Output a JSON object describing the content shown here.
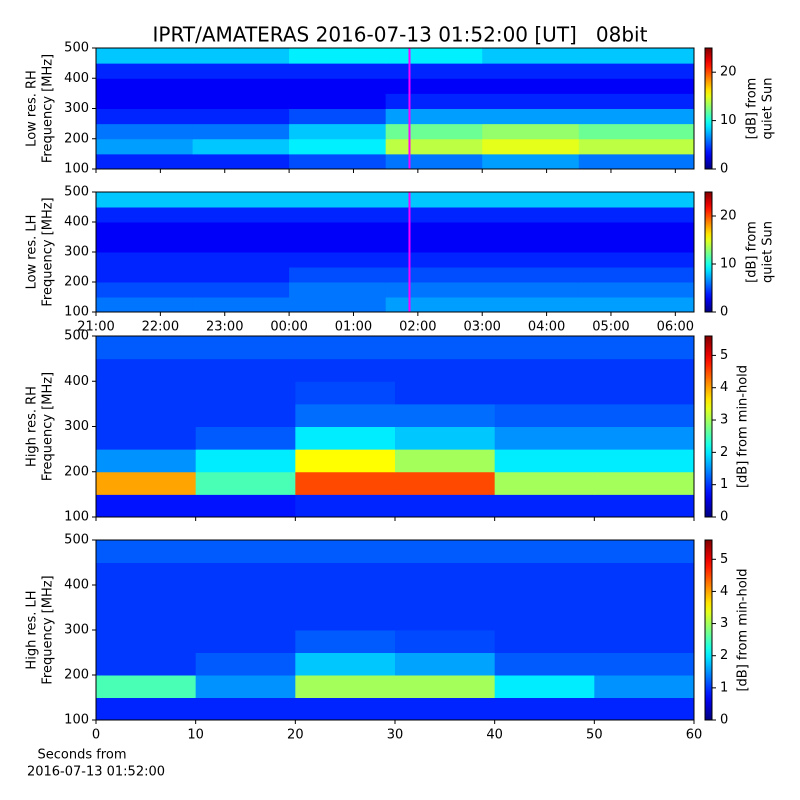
{
  "title": "IPRT/AMATERAS 2016-07-13 01:52:00 [UT]   08bit",
  "chart_data": [
    {
      "type": "heatmap",
      "ylabel": [
        "Low res. RH",
        "Frequency [MHz]"
      ],
      "xlim": [
        21,
        30.29
      ],
      "xticks": [
        21,
        22,
        23,
        24,
        25,
        26,
        27,
        28,
        29,
        30
      ],
      "show_xtick_labels": false,
      "ylim": [
        100,
        500
      ],
      "yticks": [
        100,
        200,
        300,
        400,
        500
      ],
      "marker_x": 25.87,
      "marker_color": "#ff00ff",
      "xbins": [
        21,
        22.5,
        24,
        25.5,
        27,
        28.5,
        30.29
      ],
      "ybins": [
        100,
        150,
        200,
        250,
        300,
        350,
        400,
        450,
        500
      ],
      "z": [
        [
          4,
          4,
          5,
          6,
          7,
          6
        ],
        [
          7,
          8,
          9,
          14,
          15,
          14
        ],
        [
          6,
          6,
          8,
          12,
          13,
          12
        ],
        [
          4,
          4,
          5,
          7,
          7,
          7
        ],
        [
          3,
          3,
          3,
          4,
          4,
          4
        ],
        [
          3,
          3,
          3,
          3,
          3,
          3
        ],
        [
          4,
          4,
          4,
          4,
          4,
          4
        ],
        [
          8,
          8,
          9,
          9,
          8,
          8
        ]
      ],
      "colormap": "jet",
      "zlim": [
        0,
        25
      ],
      "zticks": [
        0,
        10,
        20
      ],
      "colorbar_label": [
        "[dB] from",
        "quiet Sun"
      ]
    },
    {
      "type": "heatmap",
      "ylabel": [
        "Low res. LH",
        "Frequency [MHz]"
      ],
      "xlim": [
        21,
        30.29
      ],
      "xticks": [
        {
          "value": 21,
          "label": "21:00"
        },
        {
          "value": 22,
          "label": "22:00"
        },
        {
          "value": 23,
          "label": "23:00"
        },
        {
          "value": 24,
          "label": "00:00"
        },
        {
          "value": 25,
          "label": "01:00"
        },
        {
          "value": 26,
          "label": "02:00"
        },
        {
          "value": 27,
          "label": "03:00"
        },
        {
          "value": 28,
          "label": "04:00"
        },
        {
          "value": 29,
          "label": "05:00"
        },
        {
          "value": 30,
          "label": "06:00"
        }
      ],
      "show_xtick_labels": true,
      "ylim": [
        100,
        500
      ],
      "yticks": [
        100,
        200,
        300,
        400,
        500
      ],
      "marker_x": 25.87,
      "marker_color": "#ff00ff",
      "xbins": [
        21,
        22.5,
        24,
        25.5,
        27,
        28.5,
        30.29
      ],
      "ybins": [
        100,
        150,
        200,
        250,
        300,
        350,
        400,
        450,
        500
      ],
      "z": [
        [
          6,
          6,
          6,
          7,
          7,
          7
        ],
        [
          5,
          5,
          6,
          6,
          6,
          6
        ],
        [
          4,
          4,
          5,
          5,
          5,
          5
        ],
        [
          4,
          4,
          4,
          4,
          4,
          4
        ],
        [
          3,
          3,
          3,
          3,
          3,
          3
        ],
        [
          3,
          3,
          3,
          3,
          3,
          3
        ],
        [
          4,
          4,
          4,
          4,
          4,
          4
        ],
        [
          8,
          8,
          8,
          8,
          8,
          8
        ]
      ],
      "colormap": "jet",
      "zlim": [
        0,
        25
      ],
      "zticks": [
        0,
        10,
        20
      ],
      "colorbar_label": [
        "[dB] from",
        "quiet Sun"
      ]
    },
    {
      "type": "heatmap",
      "ylabel": [
        "High res. RH",
        "Frequency [MHz]"
      ],
      "xlim": [
        0,
        60
      ],
      "xticks": [
        0,
        10,
        20,
        30,
        40,
        50,
        60
      ],
      "show_xtick_labels": false,
      "ylim": [
        100,
        500
      ],
      "yticks": [
        100,
        200,
        300,
        400,
        500
      ],
      "xbins": [
        0,
        10,
        20,
        30,
        40,
        50,
        60
      ],
      "ybins": [
        100,
        150,
        200,
        250,
        300,
        350,
        400,
        450,
        500
      ],
      "z": [
        [
          0.8,
          0.8,
          0.9,
          0.9,
          0.9,
          0.9
        ],
        [
          4,
          2.5,
          4.5,
          4.5,
          3,
          3
        ],
        [
          1.5,
          2,
          3.5,
          3,
          2,
          2
        ],
        [
          1,
          1.2,
          2,
          1.8,
          1.5,
          1.5
        ],
        [
          1,
          1,
          1.3,
          1.3,
          1.2,
          1.2
        ],
        [
          1,
          1,
          1.1,
          1,
          1,
          1
        ],
        [
          1,
          1,
          1,
          1,
          1,
          1
        ],
        [
          1.2,
          1.2,
          1.2,
          1.2,
          1.2,
          1.2
        ]
      ],
      "colormap": "jet",
      "zlim": [
        0,
        5.6
      ],
      "zticks": [
        0,
        1,
        2,
        3,
        4,
        5
      ],
      "colorbar_label": [
        "[dB] from min-hold"
      ]
    },
    {
      "type": "heatmap",
      "ylabel": [
        "High res. LH",
        "Frequency [MHz]"
      ],
      "xlim": [
        0,
        60
      ],
      "xticks": [
        0,
        10,
        20,
        30,
        40,
        50,
        60
      ],
      "show_xtick_labels": true,
      "xlabel": [
        "Seconds from",
        "2016-07-13 01:52:00"
      ],
      "ylim": [
        100,
        500
      ],
      "yticks": [
        100,
        200,
        300,
        400,
        500
      ],
      "xbins": [
        0,
        10,
        20,
        30,
        40,
        50,
        60
      ],
      "ybins": [
        100,
        150,
        200,
        250,
        300,
        350,
        400,
        450,
        500
      ],
      "z": [
        [
          0.9,
          0.9,
          0.9,
          0.9,
          0.9,
          0.9
        ],
        [
          2.5,
          1.5,
          3,
          3,
          2,
          1.5
        ],
        [
          1,
          1.2,
          1.8,
          1.6,
          1.2,
          1.2
        ],
        [
          1,
          1,
          1.2,
          1.1,
          1,
          1
        ],
        [
          1,
          1,
          1,
          1,
          1,
          1
        ],
        [
          1,
          1,
          1,
          1,
          1,
          1
        ],
        [
          1,
          1,
          1,
          1,
          1,
          1
        ],
        [
          1.2,
          1.2,
          1.2,
          1.2,
          1.2,
          1.2
        ]
      ],
      "colormap": "jet",
      "zlim": [
        0,
        5.6
      ],
      "zticks": [
        0,
        1,
        2,
        3,
        4,
        5
      ],
      "colorbar_label": [
        "[dB] from min-hold"
      ]
    }
  ]
}
